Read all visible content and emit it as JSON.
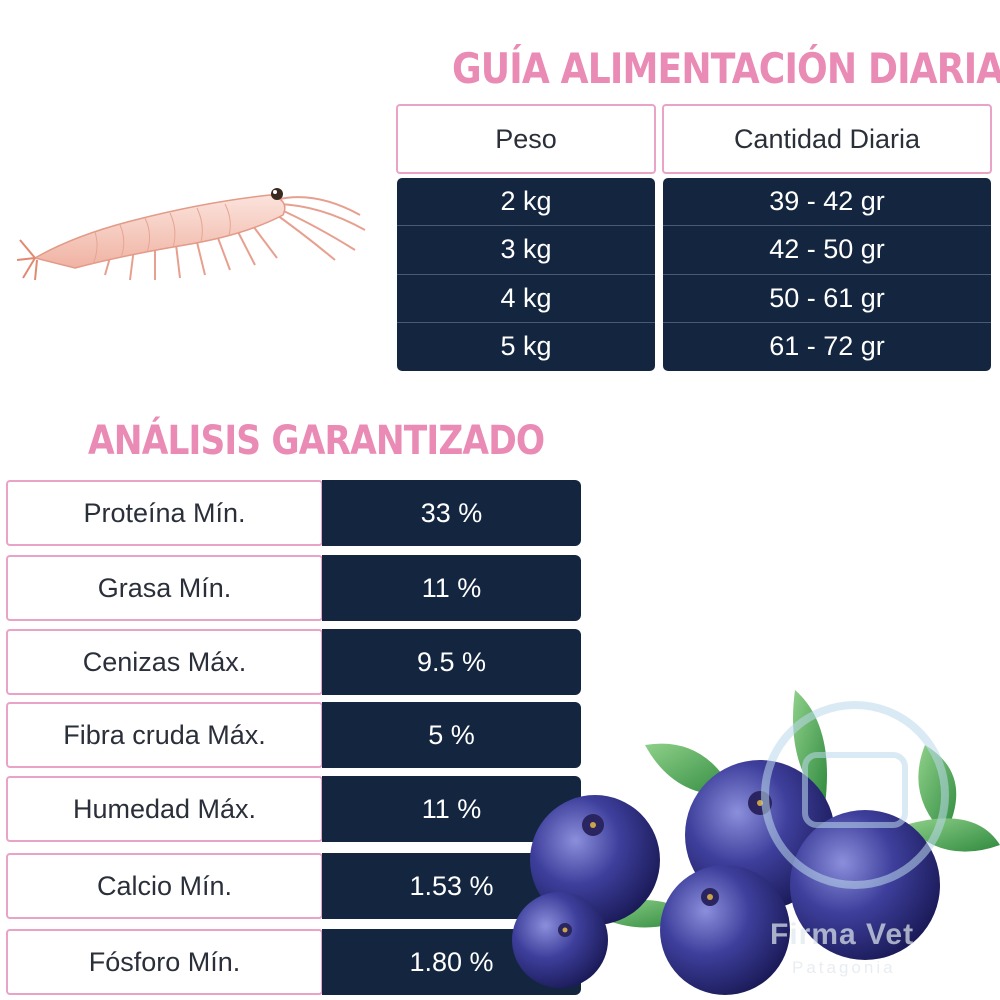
{
  "feeding_guide": {
    "title": "GUÍA ALIMENTACIÓN DIARIA",
    "headers": {
      "weight": "Peso",
      "amount": "Cantidad Diaria"
    },
    "rows": [
      {
        "weight": "2 kg",
        "amount": "39 - 42 gr"
      },
      {
        "weight": "3 kg",
        "amount": "42 - 50 gr"
      },
      {
        "weight": "4 kg",
        "amount": "50 - 61 gr"
      },
      {
        "weight": "5 kg",
        "amount": "61 - 72 gr"
      }
    ]
  },
  "analysis": {
    "title": "ANÁLISIS GARANTIZADO",
    "rows": [
      {
        "label": "Proteína Mín.",
        "value": "33 %"
      },
      {
        "label": "Grasa Mín.",
        "value": "11 %"
      },
      {
        "label": "Cenizas Máx.",
        "value": "9.5 %"
      },
      {
        "label": "Fibra cruda Máx.",
        "value": "5 %"
      },
      {
        "label": "Humedad Máx.",
        "value": "11 %"
      },
      {
        "label": "Calcio Mín.",
        "value": "1.53 %"
      },
      {
        "label": "Fósforo Mín.",
        "value": "1.80 %"
      }
    ]
  },
  "watermark": {
    "name": "Firma Vet",
    "subtitle": "Patagonia"
  },
  "colors": {
    "accent_pink": "#e98bb5",
    "navy": "#14263f",
    "border_pink": "#e9a3c6"
  },
  "icons": {
    "krill": "krill-illustration",
    "blueberries": "blueberries-illustration",
    "watermark": "firma-vet-logo-icon"
  }
}
